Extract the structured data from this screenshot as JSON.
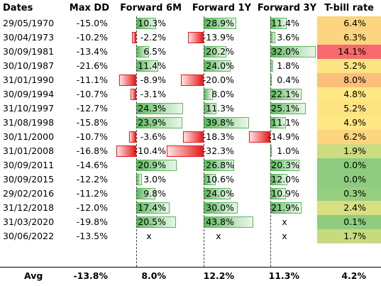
{
  "headers": {
    "dates": "Dates",
    "maxdd": "Max DD",
    "f6m": "Forward 6M",
    "f1y": "Forward 1Y",
    "f3y": "Forward 3Y",
    "tbill": "T-bill rate"
  },
  "rows": [
    {
      "date": "29/05/1970",
      "dd": "-15.0%",
      "f6m": "10.3%",
      "f6m_v": 10.3,
      "f1y": "28.9%",
      "f1y_v": 28.9,
      "f3y": "11.4%",
      "f3y_v": 11.4,
      "tb": "6.4%",
      "tb_color": "#fcd47f"
    },
    {
      "date": "30/04/1973",
      "dd": "-10.2%",
      "f6m": "-2.2%",
      "f6m_v": -2.2,
      "f1y": "-13.9%",
      "f1y_v": -13.9,
      "f3y": "3.6%",
      "f3y_v": 3.6,
      "tb": "6.3%",
      "tb_color": "#fcd580"
    },
    {
      "date": "30/09/1981",
      "dd": "-13.4%",
      "f6m": "6.5%",
      "f6m_v": 6.5,
      "f1y": "20.2%",
      "f1y_v": 20.2,
      "f3y": "32.0%",
      "f3y_v": 32.0,
      "tb": "14.1%",
      "tb_color": "#f8696b"
    },
    {
      "date": "30/10/1987",
      "dd": "-21.6%",
      "f6m": "11.4%",
      "f6m_v": 11.4,
      "f1y": "24.0%",
      "f1y_v": 24.0,
      "f3y": "1.8%",
      "f3y_v": 1.8,
      "tb": "5.2%",
      "tb_color": "#fee383"
    },
    {
      "date": "31/01/1990",
      "dd": "-11.1%",
      "f6m": "-8.9%",
      "f6m_v": -8.9,
      "f1y": "-20.0%",
      "f1y_v": -20.0,
      "f3y": "0.4%",
      "f3y_v": 0.4,
      "tb": "8.0%",
      "tb_color": "#fbbf7b"
    },
    {
      "date": "30/09/1994",
      "dd": "-10.7%",
      "f6m": "-3.1%",
      "f6m_v": -3.1,
      "f1y": "8.0%",
      "f1y_v": 8.0,
      "f3y": "22.1%",
      "f3y_v": 22.1,
      "tb": "4.8%",
      "tb_color": "#ffe884"
    },
    {
      "date": "31/10/1997",
      "dd": "-12.7%",
      "f6m": "24.3%",
      "f6m_v": 24.3,
      "f1y": "11.3%",
      "f1y_v": 11.3,
      "f3y": "25.1%",
      "f3y_v": 25.1,
      "tb": "5.2%",
      "tb_color": "#fee383"
    },
    {
      "date": "31/08/1998",
      "dd": "-15.8%",
      "f6m": "23.9%",
      "f6m_v": 23.9,
      "f1y": "39.8%",
      "f1y_v": 39.8,
      "f3y": "11.1%",
      "f3y_v": 11.1,
      "tb": "4.9%",
      "tb_color": "#ffe784"
    },
    {
      "date": "30/11/2000",
      "dd": "-10.7%",
      "f6m": "-3.6%",
      "f6m_v": -3.6,
      "f1y": "-18.3%",
      "f1y_v": -18.3,
      "f3y": "-14.9%",
      "f3y_v": -14.9,
      "tb": "6.2%",
      "tb_color": "#fcd67f"
    },
    {
      "date": "31/01/2008",
      "dd": "-16.8%",
      "f6m": "-10.4%",
      "f6m_v": -10.4,
      "f1y": "-32.3%",
      "f1y_v": -32.3,
      "f3y": "1.0%",
      "f3y_v": 1.0,
      "tb": "1.9%",
      "tb_color": "#cbdc81"
    },
    {
      "date": "30/09/2011",
      "dd": "-14.6%",
      "f6m": "20.9%",
      "f6m_v": 20.9,
      "f1y": "26.8%",
      "f1y_v": 26.8,
      "f3y": "20.3%",
      "f3y_v": 20.3,
      "tb": "0.0%",
      "tb_color": "#8ecb7e"
    },
    {
      "date": "30/09/2015",
      "dd": "-12.2%",
      "f6m": "3.0%",
      "f6m_v": 3.0,
      "f1y": "10.6%",
      "f1y_v": 10.6,
      "f3y": "12.0%",
      "f3y_v": 12.0,
      "tb": "0.0%",
      "tb_color": "#8ecb7e"
    },
    {
      "date": "29/02/2016",
      "dd": "-11.2%",
      "f6m": "9.8%",
      "f6m_v": 9.8,
      "f1y": "24.0%",
      "f1y_v": 24.0,
      "f3y": "10.9%",
      "f3y_v": 10.9,
      "tb": "0.3%",
      "tb_color": "#96ce7f"
    },
    {
      "date": "31/12/2018",
      "dd": "-12.0%",
      "f6m": "17.4%",
      "f6m_v": 17.4,
      "f1y": "30.0%",
      "f1y_v": 30.0,
      "f3y": "21.9%",
      "f3y_v": 21.9,
      "tb": "2.4%",
      "tb_color": "#d8df81"
    },
    {
      "date": "31/03/2020",
      "dd": "-19.8%",
      "f6m": "20.5%",
      "f6m_v": 20.5,
      "f1y": "43.8%",
      "f1y_v": 43.8,
      "f3y": "x",
      "f3y_v": null,
      "tb": "0.1%",
      "tb_color": "#90cc7e"
    },
    {
      "date": "30/06/2022",
      "dd": "-13.5%",
      "f6m": "x",
      "f6m_v": null,
      "f1y": "x",
      "f1y_v": null,
      "f3y": "x",
      "f3y_v": null,
      "tb": "1.7%",
      "tb_color": "#c6da80"
    }
  ],
  "avg": {
    "label": "Avg",
    "dd": "-13.8%",
    "f6m": "8.0%",
    "f1y": "12.2%",
    "f3y": "11.3%",
    "tb": "4.2%"
  }
}
